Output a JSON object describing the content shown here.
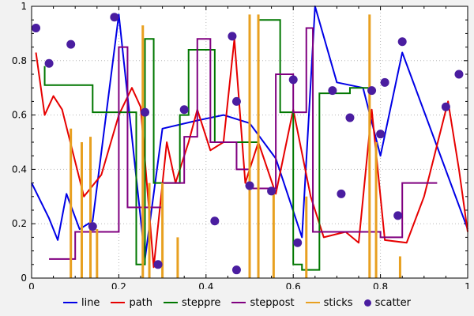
{
  "chart": {
    "outer_bg": "#f2f2f2",
    "plot_bg": "#ffffff",
    "grid_color": "#b8b8b8",
    "axis_color": "#000000",
    "xticks": [
      0,
      0.2,
      0.4,
      0.6,
      0.8,
      1
    ],
    "yticks": [
      0,
      0.2,
      0.4,
      0.6,
      0.8,
      1
    ],
    "xtick_labels": [
      "0",
      "0.2",
      "0.4",
      "0.6",
      "0.8",
      "1"
    ],
    "ytick_labels": [
      "0",
      "0.2",
      "0.4",
      "0.6",
      "0.8",
      "1"
    ],
    "minor_step": 0.05
  },
  "chart_data": {
    "type": "line",
    "title": "",
    "xlabel": "",
    "ylabel": "",
    "xlim": [
      0,
      1
    ],
    "ylim": [
      0,
      1
    ],
    "grid": true,
    "legend_position": "bottom",
    "series": [
      {
        "name": "line",
        "type": "line",
        "color": "#0000e6",
        "points": [
          [
            0.0,
            0.35
          ],
          [
            0.04,
            0.22
          ],
          [
            0.06,
            0.14
          ],
          [
            0.08,
            0.31
          ],
          [
            0.11,
            0.18
          ],
          [
            0.14,
            0.21
          ],
          [
            0.2,
            0.97
          ],
          [
            0.26,
            0.07
          ],
          [
            0.3,
            0.55
          ],
          [
            0.38,
            0.58
          ],
          [
            0.44,
            0.6
          ],
          [
            0.5,
            0.57
          ],
          [
            0.56,
            0.44
          ],
          [
            0.62,
            0.15
          ],
          [
            0.65,
            1.0
          ],
          [
            0.7,
            0.72
          ],
          [
            0.76,
            0.7
          ],
          [
            0.8,
            0.45
          ],
          [
            0.85,
            0.83
          ],
          [
            1.0,
            0.18
          ]
        ]
      },
      {
        "name": "path",
        "type": "path",
        "color": "#e60000",
        "points": [
          [
            0.01,
            0.83
          ],
          [
            0.03,
            0.6
          ],
          [
            0.05,
            0.67
          ],
          [
            0.07,
            0.62
          ],
          [
            0.12,
            0.3
          ],
          [
            0.16,
            0.38
          ],
          [
            0.2,
            0.6
          ],
          [
            0.23,
            0.7
          ],
          [
            0.25,
            0.63
          ],
          [
            0.28,
            0.04
          ],
          [
            0.31,
            0.5
          ],
          [
            0.33,
            0.35
          ],
          [
            0.36,
            0.5
          ],
          [
            0.38,
            0.62
          ],
          [
            0.41,
            0.47
          ],
          [
            0.44,
            0.5
          ],
          [
            0.465,
            0.88
          ],
          [
            0.49,
            0.35
          ],
          [
            0.52,
            0.5
          ],
          [
            0.56,
            0.31
          ],
          [
            0.6,
            0.62
          ],
          [
            0.64,
            0.3
          ],
          [
            0.67,
            0.15
          ],
          [
            0.72,
            0.17
          ],
          [
            0.75,
            0.13
          ],
          [
            0.78,
            0.62
          ],
          [
            0.81,
            0.14
          ],
          [
            0.86,
            0.13
          ],
          [
            0.9,
            0.3
          ],
          [
            0.955,
            0.65
          ],
          [
            0.98,
            0.4
          ],
          [
            1.0,
            0.17
          ]
        ]
      },
      {
        "name": "steppre",
        "type": "steppre",
        "color": "#007700",
        "points": [
          [
            0.03,
            0.78
          ],
          [
            0.14,
            0.71
          ],
          [
            0.24,
            0.61
          ],
          [
            0.26,
            0.05
          ],
          [
            0.28,
            0.88
          ],
          [
            0.34,
            0.35
          ],
          [
            0.36,
            0.6
          ],
          [
            0.42,
            0.84
          ],
          [
            0.47,
            0.5
          ],
          [
            0.52,
            0.5
          ],
          [
            0.57,
            0.95
          ],
          [
            0.6,
            0.61
          ],
          [
            0.62,
            0.05
          ],
          [
            0.66,
            0.03
          ],
          [
            0.73,
            0.68
          ],
          [
            0.78,
            0.7
          ]
        ]
      },
      {
        "name": "steppost",
        "type": "steppost",
        "color": "#800080",
        "points": [
          [
            0.04,
            0.07
          ],
          [
            0.1,
            0.17
          ],
          [
            0.2,
            0.85
          ],
          [
            0.22,
            0.26
          ],
          [
            0.3,
            0.35
          ],
          [
            0.35,
            0.52
          ],
          [
            0.38,
            0.88
          ],
          [
            0.41,
            0.5
          ],
          [
            0.47,
            0.4
          ],
          [
            0.5,
            0.33
          ],
          [
            0.56,
            0.75
          ],
          [
            0.6,
            0.61
          ],
          [
            0.63,
            0.92
          ],
          [
            0.645,
            0.17
          ],
          [
            0.8,
            0.15
          ],
          [
            0.85,
            0.35
          ],
          [
            0.93,
            0.35
          ]
        ]
      },
      {
        "name": "sticks",
        "type": "sticks",
        "color": "#e8a020",
        "points": [
          [
            0.09,
            0.55
          ],
          [
            0.115,
            0.5
          ],
          [
            0.135,
            0.52
          ],
          [
            0.15,
            0.18
          ],
          [
            0.255,
            0.93
          ],
          [
            0.27,
            0.35
          ],
          [
            0.3,
            0.35
          ],
          [
            0.335,
            0.15
          ],
          [
            0.5,
            0.97
          ],
          [
            0.52,
            0.97
          ],
          [
            0.555,
            0.33
          ],
          [
            0.63,
            0.3
          ],
          [
            0.775,
            0.97
          ],
          [
            0.79,
            0.5
          ],
          [
            0.845,
            0.08
          ]
        ]
      },
      {
        "name": "scatter",
        "type": "scatter",
        "color": "#4a1da0",
        "points": [
          [
            0.01,
            0.92
          ],
          [
            0.04,
            0.79
          ],
          [
            0.09,
            0.86
          ],
          [
            0.14,
            0.19
          ],
          [
            0.19,
            0.96
          ],
          [
            0.26,
            0.61
          ],
          [
            0.29,
            0.05
          ],
          [
            0.35,
            0.62
          ],
          [
            0.42,
            0.21
          ],
          [
            0.46,
            0.89
          ],
          [
            0.47,
            0.03
          ],
          [
            0.47,
            0.65
          ],
          [
            0.5,
            0.34
          ],
          [
            0.55,
            0.32
          ],
          [
            0.6,
            0.73
          ],
          [
            0.61,
            0.13
          ],
          [
            0.69,
            0.69
          ],
          [
            0.71,
            0.31
          ],
          [
            0.73,
            0.59
          ],
          [
            0.78,
            0.69
          ],
          [
            0.8,
            0.53
          ],
          [
            0.81,
            0.72
          ],
          [
            0.84,
            0.23
          ],
          [
            0.85,
            0.87
          ],
          [
            0.95,
            0.63
          ],
          [
            0.98,
            0.75
          ]
        ]
      }
    ]
  },
  "legend": {
    "items": [
      {
        "label": "line"
      },
      {
        "label": "path"
      },
      {
        "label": "steppre"
      },
      {
        "label": "steppost"
      },
      {
        "label": "sticks"
      },
      {
        "label": "scatter"
      }
    ]
  }
}
